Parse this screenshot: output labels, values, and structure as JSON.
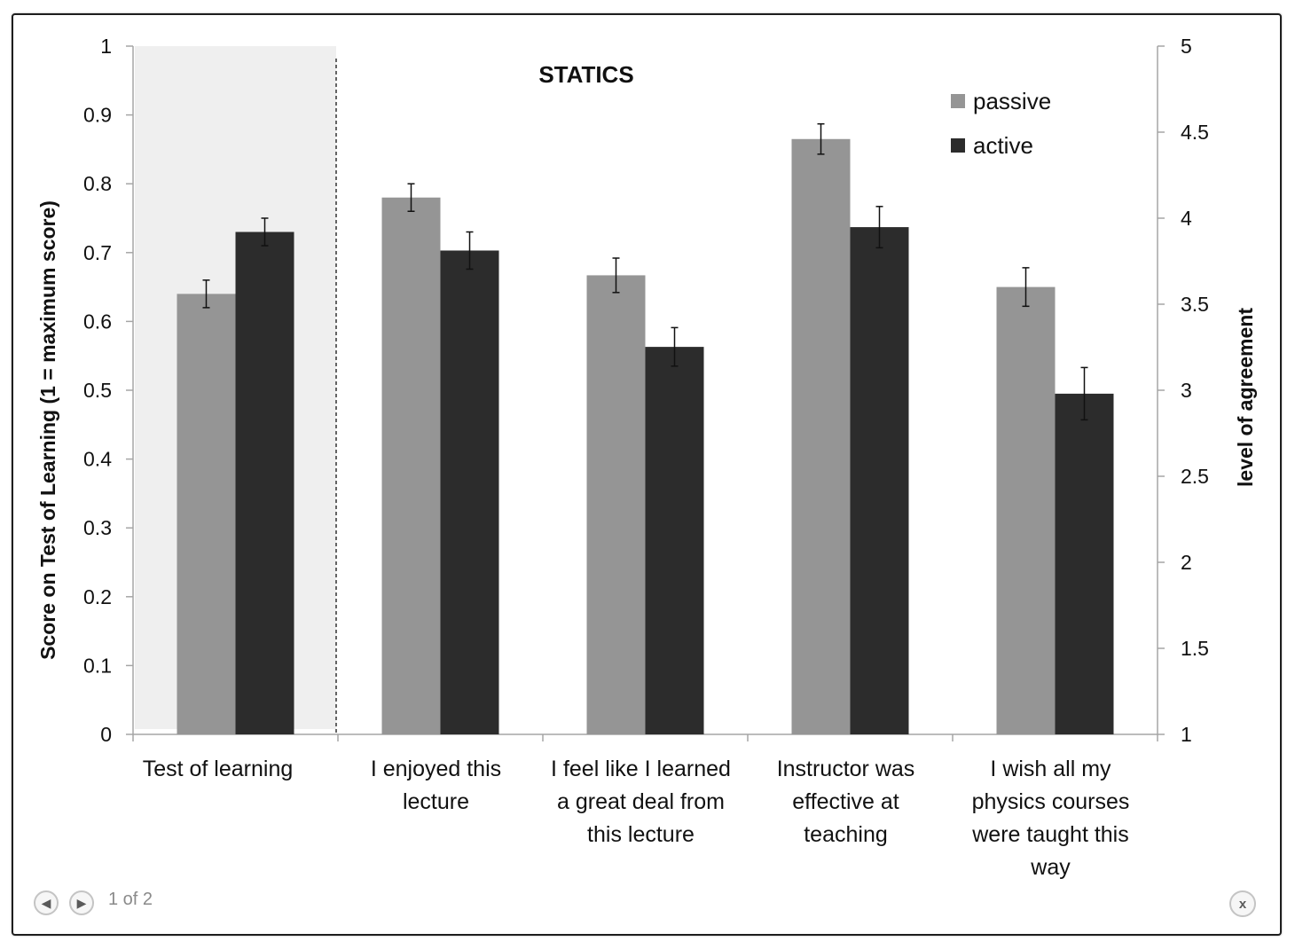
{
  "chart_data": {
    "type": "bar",
    "title": "STATICS",
    "categories": [
      [
        "Test of learning"
      ],
      [
        "I enjoyed this",
        "lecture"
      ],
      [
        "I feel like I learned",
        "a great deal from",
        "this lecture"
      ],
      [
        "Instructor was",
        "effective at",
        "teaching"
      ],
      [
        "I wish all my",
        "physics courses",
        "were taught this",
        "way"
      ]
    ],
    "series": [
      {
        "name": "passive",
        "color": "#959595",
        "values": [
          0.64,
          0.78,
          0.667,
          0.865,
          0.65
        ],
        "errors": [
          0.02,
          0.02,
          0.025,
          0.022,
          0.028
        ]
      },
      {
        "name": "active",
        "color": "#2c2c2c",
        "values": [
          0.73,
          0.703,
          0.563,
          0.737,
          0.495
        ],
        "errors": [
          0.02,
          0.027,
          0.028,
          0.03,
          0.038
        ]
      }
    ],
    "y_left": {
      "label": "Score on Test of Learning  (1 = maximum score)",
      "range": [
        0,
        1
      ],
      "ticks": [
        "0",
        "0.1",
        "0.2",
        "0.3",
        "0.4",
        "0.5",
        "0.6",
        "0.7",
        "0.8",
        "0.9",
        "1"
      ]
    },
    "y_right": {
      "label": "level of agreement",
      "range": [
        1,
        5
      ],
      "ticks": [
        "1",
        "1.5",
        "2",
        "2.5",
        "3",
        "3.5",
        "4",
        "4.5",
        "5"
      ]
    },
    "legend_position": "top-right",
    "first_category_shaded": true,
    "shade_color": "#efefef",
    "separator_after_first_category": "dashed"
  },
  "viewer": {
    "page_indicator": "1 of 2",
    "prev_icon": "arrow-left-icon",
    "next_icon": "arrow-right-icon",
    "close_icon": "close-icon",
    "close_glyph": "x"
  }
}
